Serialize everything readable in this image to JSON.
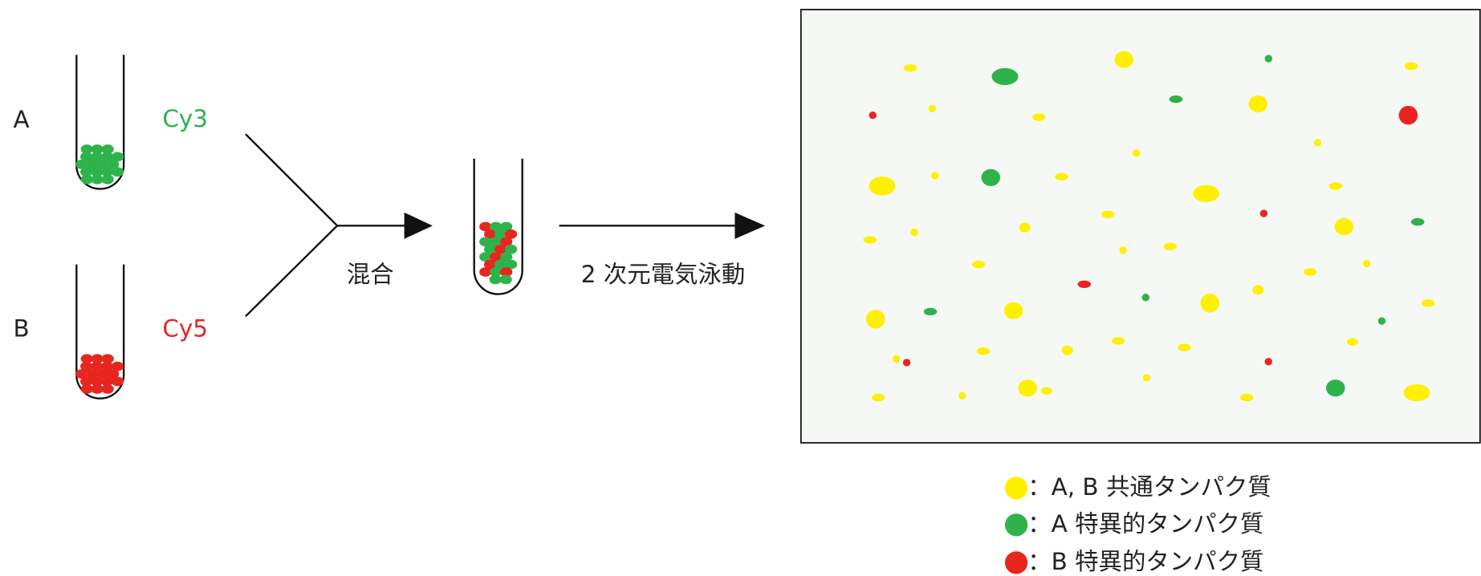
{
  "samples": [
    {
      "label": "A",
      "dye": "Cy3"
    },
    {
      "label": "B",
      "dye": "Cy5"
    }
  ],
  "steps": {
    "mix": "混合",
    "electrophoresis": "2 次元電気泳動"
  },
  "legend": [
    "：A, B 共通タンパク質",
    "：A 特異的タンパク質",
    "：B 特異的タンパク質"
  ]
}
